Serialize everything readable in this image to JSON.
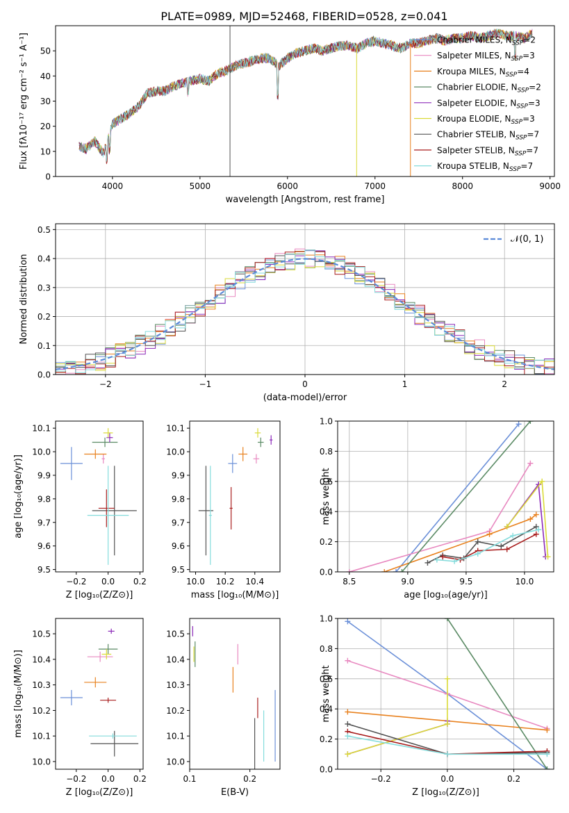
{
  "figure_title": "PLATE=0989, MJD=52468, FIBERID=0528, z=0.041",
  "colors": {
    "Chabrier MILES": "#6a8fd8",
    "Salpeter MILES": "#e888c0",
    "Kroupa MILES": "#e8801c",
    "Chabrier ELODIE": "#5a8a64",
    "Salpeter ELODIE": "#8b28b8",
    "Kroupa ELODIE": "#dada36",
    "Chabrier STELIB": "#505050",
    "Salpeter STELIB": "#a81c1c",
    "Kroupa STELIB": "#84dcdc"
  },
  "legend_spectrum": [
    {
      "model": "Chabrier MILES",
      "label": "Chabrier MILES, N",
      "sub": "SSP",
      "suffix": "=2"
    },
    {
      "model": "Salpeter MILES",
      "label": "Salpeter MILES, N",
      "sub": "SSP",
      "suffix": "=3"
    },
    {
      "model": "Kroupa MILES",
      "label": "Kroupa MILES, N",
      "sub": "SSP",
      "suffix": "=4"
    },
    {
      "model": "Chabrier ELODIE",
      "label": "Chabrier ELODIE, N",
      "sub": "SSP",
      "suffix": "=2"
    },
    {
      "model": "Salpeter ELODIE",
      "label": "Salpeter ELODIE, N",
      "sub": "SSP",
      "suffix": "=3"
    },
    {
      "model": "Kroupa ELODIE",
      "label": "Kroupa ELODIE, N",
      "sub": "SSP",
      "suffix": "=3"
    },
    {
      "model": "Chabrier STELIB",
      "label": "Chabrier STELIB, N",
      "sub": "SSP",
      "suffix": "=7"
    },
    {
      "model": "Salpeter STELIB",
      "label": "Salpeter STELIB, N",
      "sub": "SSP",
      "suffix": "=7"
    },
    {
      "model": "Kroupa STELIB",
      "label": "Kroupa STELIB, N",
      "sub": "SSP",
      "suffix": "=7"
    }
  ],
  "chart_data": [
    {
      "id": "spectrum",
      "type": "line",
      "xlabel": "wavelength [Angstrom, rest frame]",
      "ylabel": "Flux [fλ10⁻¹⁷ erg cm⁻² s⁻¹ A⁻¹]",
      "xlim": [
        3350,
        9050
      ],
      "ylim": [
        0,
        60
      ],
      "xticks": [
        4000,
        5000,
        6000,
        7000,
        8000,
        9000
      ],
      "yticks": [
        0,
        10,
        20,
        30,
        40,
        50
      ],
      "x": [
        3620,
        3700,
        3800,
        3900,
        4000,
        4100,
        4200,
        4300,
        4400,
        4500,
        4600,
        4700,
        4800,
        4900,
        5000,
        5100,
        5200,
        5300,
        5400,
        5500,
        5600,
        5700,
        5800,
        5900,
        6000,
        6100,
        6200,
        6300,
        6400,
        6500,
        6600,
        6700,
        6800,
        6900,
        7000,
        7100,
        7200,
        7300,
        7400,
        7500,
        7600,
        7700,
        7800,
        7900,
        8000,
        8100,
        8200,
        8300,
        8400,
        8500,
        8600,
        8700,
        8800
      ],
      "y": [
        12,
        11,
        14,
        9,
        21,
        23,
        25,
        28,
        33,
        34,
        34,
        36,
        37,
        38,
        39,
        38,
        41,
        42,
        44,
        45,
        46,
        47,
        47,
        44,
        47,
        49,
        50,
        51,
        50,
        51,
        52,
        52,
        51,
        53,
        54,
        53,
        52,
        51,
        53,
        53,
        54,
        55,
        54,
        55,
        55,
        56,
        55,
        56,
        57,
        56,
        56,
        55,
        57
      ],
      "lines": [
        {
          "model": "Chabrier STELIB",
          "x": 5343,
          "ymax": 60
        },
        {
          "model": "Kroupa ELODIE",
          "x": 6790,
          "ymax": 52
        },
        {
          "model": "Kroupa MILES",
          "x": 7405,
          "ymax": 53
        }
      ]
    },
    {
      "id": "residuals",
      "type": "histogram",
      "xlabel": "(data-model)/error",
      "ylabel": "Normed distribution",
      "xlim": [
        -2.5,
        2.5
      ],
      "ylim": [
        0,
        0.52
      ],
      "xticks": [
        -2,
        -1,
        0,
        1,
        2
      ],
      "yticks": [
        0.0,
        0.1,
        0.2,
        0.3,
        0.4,
        0.5
      ],
      "legend": "𝒩(0, 1)",
      "curve": "normal(0,1)",
      "bin_width": 0.1,
      "bin_start": -2.5
    },
    {
      "id": "age_vs_Z",
      "type": "scatter",
      "xlabel": "Z [log₁₀(Z/Z⊙)]",
      "ylabel": "age  [log₁₀(age/yr)]",
      "xlim": [
        -0.33,
        0.22
      ],
      "ylim": [
        9.49,
        10.13
      ],
      "xticks": [
        -0.2,
        0.0,
        0.2
      ],
      "xticklabels": [
        "−0.2",
        "0.0",
        "0.2"
      ],
      "yticks": [
        9.5,
        9.6,
        9.7,
        9.8,
        9.9,
        10.0,
        10.1
      ],
      "points": [
        {
          "model": "Chabrier MILES",
          "x": -0.23,
          "xerr": 0.07,
          "y": 9.95,
          "yerr": 0.07
        },
        {
          "model": "Salpeter MILES",
          "x": -0.03,
          "xerr": 0.01,
          "y": 9.97,
          "yerr": 0.02
        },
        {
          "model": "Kroupa MILES",
          "x": -0.08,
          "xerr": 0.07,
          "y": 9.99,
          "yerr": 0.02
        },
        {
          "model": "Chabrier ELODIE",
          "x": -0.02,
          "xerr": 0.08,
          "y": 10.04,
          "yerr": 0.02
        },
        {
          "model": "Salpeter ELODIE",
          "x": 0.01,
          "xerr": 0.02,
          "y": 10.06,
          "yerr": 0.02
        },
        {
          "model": "Kroupa ELODIE",
          "x": 0.0,
          "xerr": 0.03,
          "y": 10.08,
          "yerr": 0.02
        },
        {
          "model": "Chabrier STELIB",
          "x": 0.04,
          "xerr": 0.14,
          "y": 9.75,
          "yerr": 0.19
        },
        {
          "model": "Salpeter STELIB",
          "x": -0.01,
          "xerr": 0.05,
          "y": 9.76,
          "yerr": 0.08
        },
        {
          "model": "Kroupa STELIB",
          "x": 0.0,
          "xerr": 0.13,
          "y": 9.73,
          "yerr": 0.21
        }
      ]
    },
    {
      "id": "age_vs_mass",
      "type": "scatter",
      "xlabel": "mass [log₁₀(M/M⊙)]",
      "ylabel": "",
      "xlim": [
        9.96,
        10.57
      ],
      "ylim": [
        9.49,
        10.13
      ],
      "xticks": [
        10.0,
        10.2,
        10.4
      ],
      "xticklabels": [
        "10.0",
        "10.2",
        "10.4"
      ],
      "yticks": [
        9.5,
        9.6,
        9.7,
        9.8,
        9.9,
        10.0,
        10.1
      ],
      "points": [
        {
          "model": "Chabrier MILES",
          "x": 10.25,
          "xerr": 0.03,
          "y": 9.95,
          "yerr": 0.04
        },
        {
          "model": "Salpeter MILES",
          "x": 10.41,
          "xerr": 0.02,
          "y": 9.97,
          "yerr": 0.02
        },
        {
          "model": "Kroupa MILES",
          "x": 10.32,
          "xerr": 0.03,
          "y": 9.99,
          "yerr": 0.03
        },
        {
          "model": "Chabrier ELODIE",
          "x": 10.44,
          "xerr": 0.02,
          "y": 10.04,
          "yerr": 0.02
        },
        {
          "model": "Salpeter ELODIE",
          "x": 10.51,
          "xerr": 0.01,
          "y": 10.05,
          "yerr": 0.02
        },
        {
          "model": "Kroupa ELODIE",
          "x": 10.42,
          "xerr": 0.02,
          "y": 10.08,
          "yerr": 0.02
        },
        {
          "model": "Chabrier STELIB",
          "x": 10.07,
          "xerr": 0.05,
          "y": 9.75,
          "yerr": 0.19
        },
        {
          "model": "Salpeter STELIB",
          "x": 10.24,
          "xerr": 0.01,
          "y": 9.76,
          "yerr": 0.09
        },
        {
          "model": "Kroupa STELIB",
          "x": 10.1,
          "xerr": 0.01,
          "y": 9.73,
          "yerr": 0.21
        }
      ]
    },
    {
      "id": "mass_weight_vs_age",
      "type": "line",
      "xlabel": "age  [log₁₀(age/yr)]",
      "ylabel": "mass weight",
      "xlim": [
        8.4,
        10.25
      ],
      "ylim": [
        0,
        1.0
      ],
      "xticks": [
        8.5,
        9.0,
        9.5,
        10.0
      ],
      "xticklabels": [
        "8.5",
        "9.0",
        "9.5",
        "10.0"
      ],
      "yticks": [
        0.0,
        0.2,
        0.4,
        0.6,
        0.8,
        1.0
      ],
      "series": [
        {
          "model": "Chabrier MILES",
          "x": [
            8.9,
            9.95
          ],
          "y": [
            0.0,
            0.98
          ]
        },
        {
          "model": "Salpeter MILES",
          "x": [
            8.5,
            9.7,
            10.05
          ],
          "y": [
            0.0,
            0.27,
            0.72
          ]
        },
        {
          "model": "Kroupa MILES",
          "x": [
            8.8,
            9.7,
            10.05,
            10.1
          ],
          "y": [
            0.0,
            0.25,
            0.35,
            0.38
          ]
        },
        {
          "model": "Chabrier ELODIE",
          "x": [
            8.95,
            10.05
          ],
          "y": [
            0.0,
            1.0
          ]
        },
        {
          "model": "Salpeter ELODIE",
          "x": [
            9.85,
            10.12,
            10.18
          ],
          "y": [
            0.3,
            0.58,
            0.1
          ]
        },
        {
          "model": "Kroupa ELODIE",
          "x": [
            9.85,
            10.15,
            10.2
          ],
          "y": [
            0.3,
            0.6,
            0.1
          ]
        },
        {
          "model": "Chabrier STELIB",
          "x": [
            9.17,
            9.3,
            9.48,
            9.6,
            9.8,
            10.1
          ],
          "y": [
            0.06,
            0.11,
            0.09,
            0.2,
            0.17,
            0.3
          ]
        },
        {
          "model": "Salpeter STELIB",
          "x": [
            9.3,
            9.45,
            9.6,
            9.85,
            10.1
          ],
          "y": [
            0.1,
            0.08,
            0.14,
            0.15,
            0.25
          ]
        },
        {
          "model": "Kroupa STELIB",
          "x": [
            9.25,
            9.4,
            9.6,
            9.9,
            10.12
          ],
          "y": [
            0.08,
            0.07,
            0.12,
            0.24,
            0.28
          ]
        }
      ]
    },
    {
      "id": "mass_vs_Z",
      "type": "scatter",
      "xlabel": "Z [log₁₀(Z/Z⊙)]",
      "ylabel": "mass [log₁₀(M/M⊙)]",
      "xlim": [
        -0.33,
        0.22
      ],
      "ylim": [
        9.97,
        10.56
      ],
      "xticks": [
        -0.2,
        0.0,
        0.2
      ],
      "xticklabels": [
        "−0.2",
        "0.0",
        "0.2"
      ],
      "yticks": [
        10.0,
        10.1,
        10.2,
        10.3,
        10.4,
        10.5
      ],
      "points": [
        {
          "model": "Chabrier MILES",
          "x": -0.23,
          "xerr": 0.07,
          "y": 10.25,
          "yerr": 0.03
        },
        {
          "model": "Salpeter MILES",
          "x": -0.05,
          "xerr": 0.08,
          "y": 10.41,
          "yerr": 0.02
        },
        {
          "model": "Kroupa MILES",
          "x": -0.08,
          "xerr": 0.07,
          "y": 10.31,
          "yerr": 0.02
        },
        {
          "model": "Chabrier ELODIE",
          "x": 0.0,
          "xerr": 0.06,
          "y": 10.44,
          "yerr": 0.02
        },
        {
          "model": "Salpeter ELODIE",
          "x": 0.02,
          "xerr": 0.02,
          "y": 10.51,
          "yerr": 0.01
        },
        {
          "model": "Kroupa ELODIE",
          "x": -0.01,
          "xerr": 0.03,
          "y": 10.42,
          "yerr": 0.02
        },
        {
          "model": "Chabrier STELIB",
          "x": 0.04,
          "xerr": 0.15,
          "y": 10.07,
          "yerr": 0.05
        },
        {
          "model": "Salpeter STELIB",
          "x": 0.0,
          "xerr": 0.05,
          "y": 10.24,
          "yerr": 0.01
        },
        {
          "model": "Kroupa STELIB",
          "x": 0.03,
          "xerr": 0.15,
          "y": 10.1,
          "yerr": 0.01
        }
      ]
    },
    {
      "id": "mass_vs_ebv",
      "type": "scatter",
      "xlabel": "E(B-V)",
      "ylabel": "",
      "xlim": [
        0.1,
        0.25
      ],
      "ylim": [
        9.97,
        10.56
      ],
      "xticks": [
        0.1,
        0.2
      ],
      "xticklabels": [
        "0.1",
        "0.2"
      ],
      "yticks": [
        10.0,
        10.1,
        10.2,
        10.3,
        10.4,
        10.5
      ],
      "points": [
        {
          "model": "Chabrier MILES",
          "x": 0.242,
          "xerr": 0.0,
          "y": 10.14,
          "yerr": 0.14
        },
        {
          "model": "Salpeter MILES",
          "x": 0.18,
          "xerr": 0.0,
          "y": 10.42,
          "yerr": 0.04
        },
        {
          "model": "Kroupa MILES",
          "x": 0.172,
          "xerr": 0.0,
          "y": 10.32,
          "yerr": 0.05
        },
        {
          "model": "Chabrier ELODIE",
          "x": 0.109,
          "xerr": 0.0,
          "y": 10.42,
          "yerr": 0.05
        },
        {
          "model": "Salpeter ELODIE",
          "x": 0.105,
          "xerr": 0.0,
          "y": 10.51,
          "yerr": 0.02
        },
        {
          "model": "Kroupa ELODIE",
          "x": 0.107,
          "xerr": 0.0,
          "y": 10.42,
          "yerr": 0.03
        },
        {
          "model": "Chabrier STELIB",
          "x": 0.208,
          "xerr": 0.0,
          "y": 10.07,
          "yerr": 0.1
        },
        {
          "model": "Salpeter STELIB",
          "x": 0.213,
          "xerr": 0.0,
          "y": 10.21,
          "yerr": 0.04
        },
        {
          "model": "Kroupa STELIB",
          "x": 0.223,
          "xerr": 0.0,
          "y": 10.1,
          "yerr": 0.1
        }
      ]
    },
    {
      "id": "mass_weight_vs_Z",
      "type": "line",
      "xlabel": "Z [log₁₀(Z/Z⊙)]",
      "ylabel": "mass weight",
      "xlim": [
        -0.33,
        0.32
      ],
      "ylim": [
        0,
        1.0
      ],
      "xticks": [
        -0.2,
        0.0,
        0.2
      ],
      "xticklabels": [
        "−0.2",
        "0.0",
        "0.2"
      ],
      "yticks": [
        0.0,
        0.2,
        0.4,
        0.6,
        0.8,
        1.0
      ],
      "series": [
        {
          "model": "Chabrier MILES",
          "x": [
            -0.3,
            0.0,
            0.3
          ],
          "y": [
            0.98,
            0.5,
            0.0
          ]
        },
        {
          "model": "Salpeter MILES",
          "x": [
            -0.3,
            0.0,
            0.3
          ],
          "y": [
            0.72,
            0.5,
            0.27
          ]
        },
        {
          "model": "Kroupa MILES",
          "x": [
            -0.3,
            0.3
          ],
          "y": [
            0.38,
            0.26
          ]
        },
        {
          "model": "Chabrier ELODIE",
          "x": [
            0.0,
            0.3
          ],
          "y": [
            1.0,
            0.0
          ]
        },
        {
          "model": "Salpeter ELODIE",
          "x": [
            -0.3,
            0.0,
            0.0
          ],
          "y": [
            0.1,
            0.3,
            0.32
          ]
        },
        {
          "model": "Kroupa ELODIE",
          "x": [
            -0.3,
            0.0,
            0.0
          ],
          "y": [
            0.1,
            0.3,
            0.6
          ]
        },
        {
          "model": "Chabrier STELIB",
          "x": [
            -0.3,
            0.0,
            0.3
          ],
          "y": [
            0.3,
            0.1,
            0.11
          ]
        },
        {
          "model": "Salpeter STELIB",
          "x": [
            -0.3,
            0.0,
            0.3
          ],
          "y": [
            0.25,
            0.1,
            0.12
          ]
        },
        {
          "model": "Kroupa STELIB",
          "x": [
            -0.3,
            0.0,
            0.3
          ],
          "y": [
            0.22,
            0.1,
            0.1
          ]
        }
      ]
    }
  ]
}
